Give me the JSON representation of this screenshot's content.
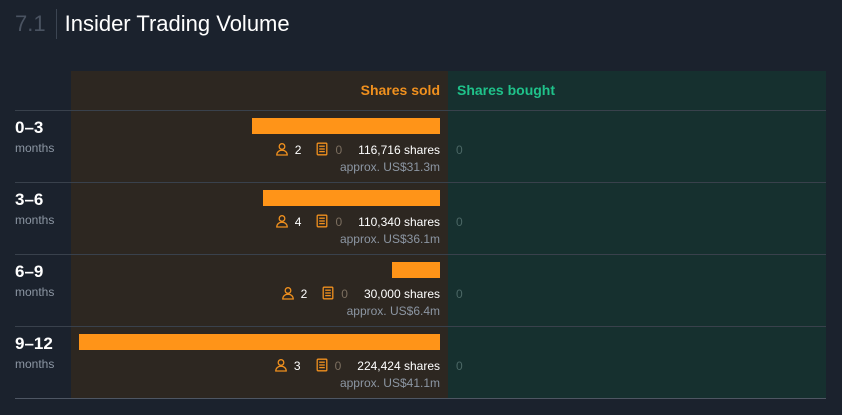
{
  "section": {
    "number": "7.1",
    "title": "Insider Trading Volume"
  },
  "columns": {
    "sold": "Shares sold",
    "bought": "Shares bought"
  },
  "colors": {
    "sold": "#ff9418",
    "bought": "#1fc28a"
  },
  "rows": [
    {
      "period": "0–3",
      "unit": "months",
      "sold_shares": 116716,
      "insiders": "2",
      "transactions": "0",
      "shares_label": "116,716 shares",
      "approx": "approx. US$31.3m",
      "bought": "0"
    },
    {
      "period": "3–6",
      "unit": "months",
      "sold_shares": 110340,
      "insiders": "4",
      "transactions": "0",
      "shares_label": "110,340 shares",
      "approx": "approx. US$36.1m",
      "bought": "0"
    },
    {
      "period": "6–9",
      "unit": "months",
      "sold_shares": 30000,
      "insiders": "2",
      "transactions": "0",
      "shares_label": "30,000 shares",
      "approx": "approx. US$6.4m",
      "bought": "0"
    },
    {
      "period": "9–12",
      "unit": "months",
      "sold_shares": 224424,
      "insiders": "3",
      "transactions": "0",
      "shares_label": "224,424 shares",
      "approx": "approx. US$41.1m",
      "bought": "0"
    }
  ],
  "icons": {
    "insiders": "person-icon",
    "transactions": "calculator-icon"
  }
}
